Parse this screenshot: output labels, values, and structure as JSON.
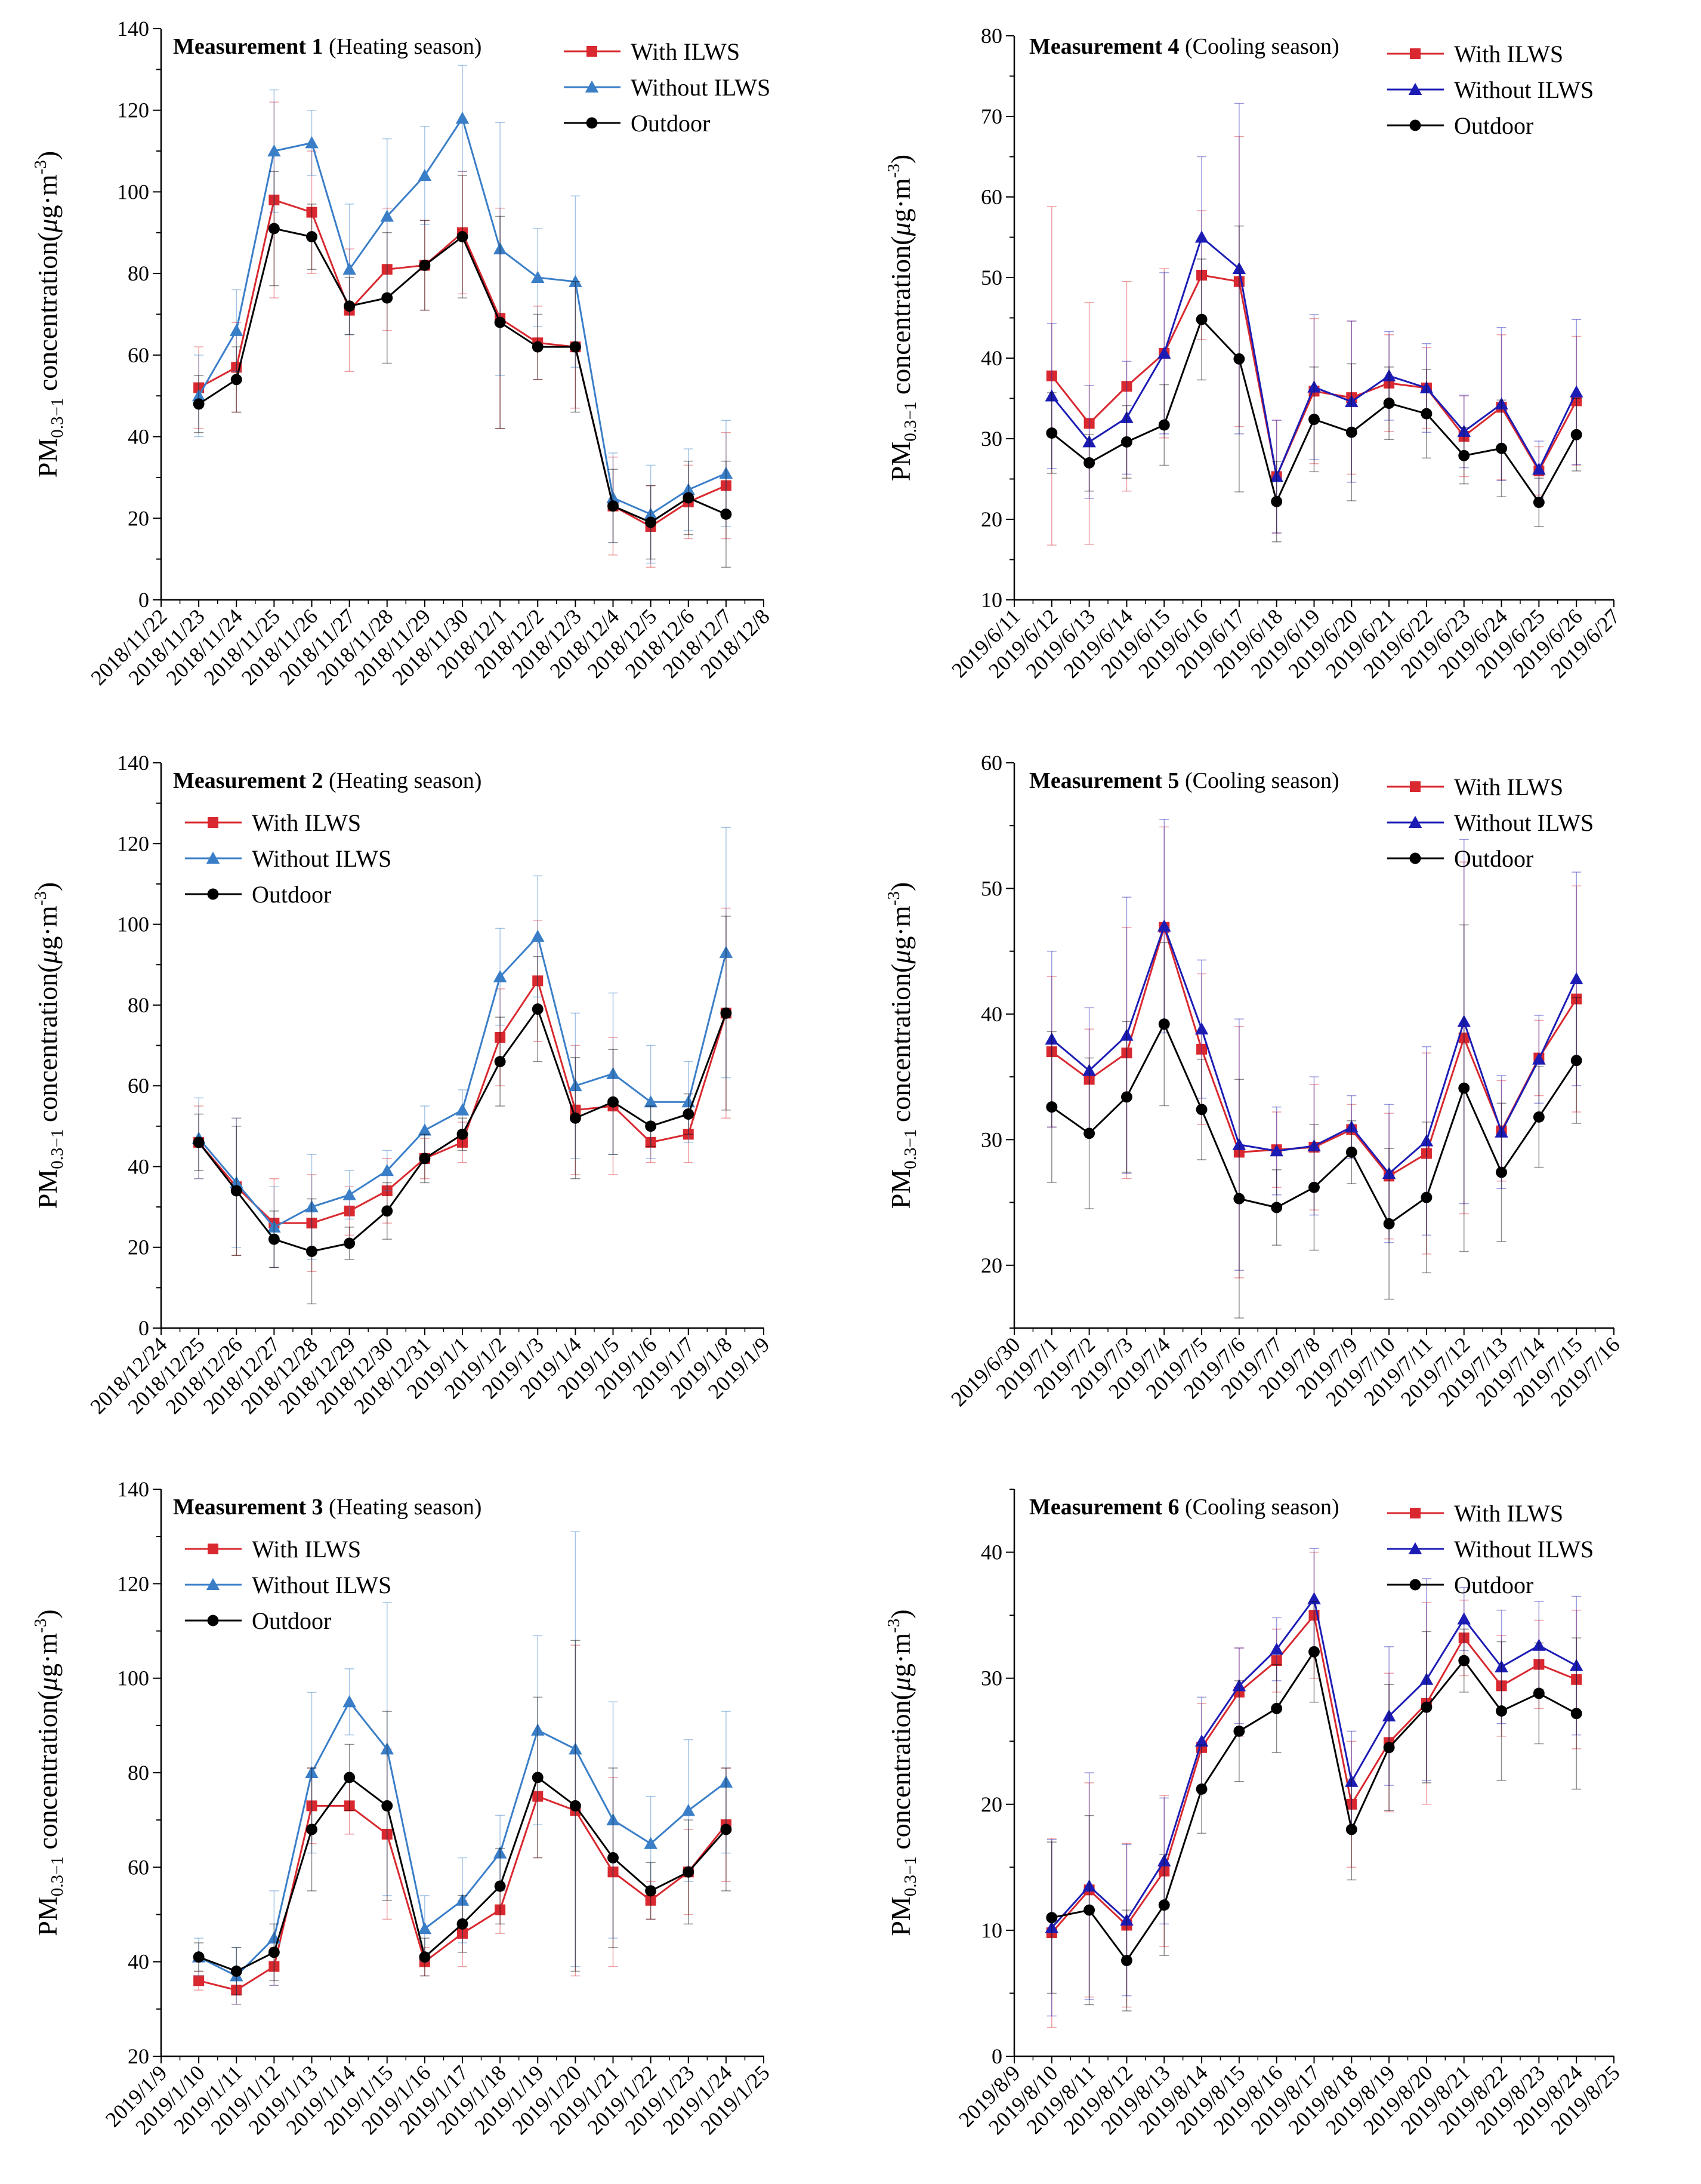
{
  "figure": {
    "ylabel": {
      "prefix": "PM",
      "subscript": "0.3−1",
      "middle": " concentration(",
      "mu": "μ",
      "unit_tail": "g·m",
      "exponent": "-3",
      "close": ")"
    },
    "colors": {
      "with": "#d9282f",
      "without_blue": "#3a7ec8",
      "without_navy": "#1c1cb5",
      "outdoor": "#000000"
    }
  },
  "chart_data": [
    {
      "type": "line",
      "title_bold": "Measurement 1",
      "title_rest": " (Heating season)",
      "ylim": [
        0,
        140
      ],
      "yticks": [
        0,
        20,
        40,
        60,
        80,
        100,
        120,
        140
      ],
      "x_tick_labels": [
        "2018/11/22",
        "2018/11/23",
        "2018/11/24",
        "2018/11/25",
        "2018/11/26",
        "2018/11/27",
        "2018/11/28",
        "2018/11/29",
        "2018/11/30",
        "2018/12/1",
        "2018/12/2",
        "2018/12/3",
        "2018/12/4",
        "2018/12/5",
        "2018/12/6",
        "2018/12/7",
        "2018/12/8"
      ],
      "x_start_index": 1,
      "legend_position": "top-right",
      "series": [
        {
          "name": "With ILWS",
          "marker": "square",
          "color_key": "with",
          "values": [
            52,
            57,
            98,
            95,
            71,
            81,
            82,
            90,
            69,
            63,
            62,
            23,
            18,
            24,
            28
          ],
          "errors": [
            10,
            11,
            24,
            15,
            15,
            15,
            11,
            15,
            27,
            9,
            15,
            12,
            10,
            9,
            13
          ]
        },
        {
          "name": "Without ILWS",
          "marker": "triangle",
          "color_key": "without_blue",
          "values": [
            50,
            66,
            110,
            112,
            81,
            94,
            104,
            118,
            86,
            79,
            78,
            25,
            21,
            27,
            31
          ],
          "errors": [
            10,
            10,
            15,
            8,
            16,
            19,
            12,
            13,
            31,
            12,
            21,
            11,
            12,
            10,
            13
          ]
        },
        {
          "name": "Outdoor",
          "marker": "circle",
          "color_key": "outdoor",
          "values": [
            48,
            54,
            91,
            89,
            72,
            74,
            82,
            89,
            68,
            62,
            62,
            23,
            19,
            25,
            21
          ],
          "errors": [
            7,
            8,
            14,
            8,
            7,
            16,
            11,
            15,
            26,
            8,
            16,
            9,
            9,
            9,
            13
          ]
        }
      ]
    },
    {
      "type": "line",
      "title_bold": "Measurement 2",
      "title_rest": " (Heating season)",
      "ylim": [
        0,
        140
      ],
      "yticks": [
        0,
        20,
        40,
        60,
        80,
        100,
        120,
        140
      ],
      "x_tick_labels": [
        "2018/12/24",
        "2018/12/25",
        "2018/12/26",
        "2018/12/27",
        "2018/12/28",
        "2018/12/29",
        "2018/12/30",
        "2018/12/31",
        "2019/1/1",
        "2019/1/2",
        "2019/1/3",
        "2019/1/4",
        "2019/1/5",
        "2019/1/6",
        "2019/1/7",
        "2019/1/8",
        "2019/1/9"
      ],
      "x_start_index": 1,
      "legend_position": "top-left",
      "series": [
        {
          "name": "With ILWS",
          "marker": "square",
          "color_key": "with",
          "values": [
            46,
            35,
            26,
            26,
            29,
            34,
            42,
            46,
            72,
            86,
            54,
            55,
            46,
            48,
            78
          ],
          "errors": [
            9,
            17,
            11,
            12,
            6,
            8,
            5,
            5,
            12,
            15,
            16,
            17,
            5,
            7,
            26
          ]
        },
        {
          "name": "Without ILWS",
          "marker": "triangle",
          "color_key": "without_blue",
          "values": [
            47,
            36,
            25,
            30,
            33,
            39,
            49,
            54,
            87,
            97,
            60,
            63,
            56,
            56,
            93
          ],
          "errors": [
            10,
            16,
            10,
            13,
            6,
            5,
            6,
            5,
            12,
            15,
            18,
            20,
            14,
            10,
            31
          ]
        },
        {
          "name": "Outdoor",
          "marker": "circle",
          "color_key": "outdoor",
          "values": [
            46,
            34,
            22,
            19,
            21,
            29,
            42,
            48,
            66,
            79,
            52,
            56,
            50,
            53,
            78
          ],
          "errors": [
            7,
            16,
            7,
            13,
            4,
            7,
            6,
            4,
            11,
            13,
            15,
            13,
            5,
            5,
            24
          ]
        }
      ]
    },
    {
      "type": "line",
      "title_bold": "Measurement 3",
      "title_rest": " (Heating season)",
      "ylim": [
        20,
        140
      ],
      "yticks": [
        20,
        40,
        60,
        80,
        100,
        120,
        140
      ],
      "x_tick_labels": [
        "2019/1/9",
        "2019/1/10",
        "2019/1/11",
        "2019/1/12",
        "2019/1/13",
        "2019/1/14",
        "2019/1/15",
        "2019/1/16",
        "2019/1/17",
        "2019/1/18",
        "2019/1/19",
        "2019/1/20",
        "2019/1/21",
        "2019/1/22",
        "2019/1/23",
        "2019/1/24",
        "2019/1/25"
      ],
      "x_start_index": 1,
      "legend_position": "top-left",
      "series": [
        {
          "name": "With ILWS",
          "marker": "square",
          "color_key": "with",
          "values": [
            36,
            34,
            39,
            73,
            73,
            67,
            40,
            46,
            51,
            75,
            72,
            59,
            53,
            59,
            69
          ],
          "errors": [
            2,
            3,
            4,
            8,
            6,
            18,
            3,
            7,
            5,
            13,
            35,
            20,
            4,
            9,
            12
          ]
        },
        {
          "name": "Without ILWS",
          "marker": "triangle",
          "color_key": "without_blue",
          "values": [
            41,
            37,
            45,
            80,
            95,
            85,
            47,
            53,
            63,
            89,
            85,
            70,
            65,
            72,
            78
          ],
          "errors": [
            4,
            6,
            10,
            17,
            7,
            31,
            7,
            9,
            8,
            20,
            46,
            25,
            10,
            15,
            15
          ]
        },
        {
          "name": "Outdoor",
          "marker": "circle",
          "color_key": "outdoor",
          "values": [
            41,
            38,
            42,
            68,
            79,
            73,
            41,
            48,
            56,
            79,
            73,
            62,
            55,
            59,
            68
          ],
          "errors": [
            3,
            5,
            6,
            13,
            7,
            20,
            4,
            6,
            8,
            17,
            35,
            19,
            6,
            11,
            13
          ]
        }
      ]
    },
    {
      "type": "line",
      "title_bold": "Measurement 4",
      "title_rest": " (Cooling season)",
      "ylim": [
        10,
        80
      ],
      "yticks": [
        10,
        20,
        30,
        40,
        50,
        60,
        70,
        80
      ],
      "x_tick_labels": [
        "2019/6/11",
        "2019/6/12",
        "2019/6/13",
        "2019/6/14",
        "2019/6/15",
        "2019/6/16",
        "2019/6/17",
        "2019/6/18",
        "2019/6/19",
        "2019/6/20",
        "2019/6/21",
        "2019/6/22",
        "2019/6/23",
        "2019/6/24",
        "2019/6/25",
        "2019/6/26",
        "2019/6/27"
      ],
      "x_start_index": 1,
      "legend_position": "top-right",
      "series": [
        {
          "name": "With ILWS",
          "marker": "square",
          "color_key": "with",
          "values": [
            37.8,
            31.9,
            36.5,
            40.6,
            50.3,
            49.5,
            25.3,
            35.9,
            35.1,
            36.9,
            36.3,
            30.3,
            33.9,
            26.0,
            34.7
          ],
          "errors": [
            21.0,
            15.0,
            13.0,
            10.5,
            8.0,
            18.0,
            7.0,
            9.0,
            9.5,
            6.0,
            5.0,
            5.0,
            9.0,
            3.0,
            8.0
          ]
        },
        {
          "name": "Without ILWS",
          "marker": "triangle",
          "color_key": "without_navy",
          "values": [
            35.3,
            29.6,
            32.6,
            40.6,
            55.0,
            51.1,
            25.3,
            36.4,
            34.6,
            37.8,
            36.3,
            30.9,
            34.3,
            26.2,
            35.8
          ],
          "errors": [
            9.0,
            7.0,
            7.0,
            10.0,
            10.0,
            20.5,
            7.0,
            9.0,
            10.0,
            5.5,
            5.5,
            4.5,
            9.5,
            3.5,
            9.0
          ]
        },
        {
          "name": "Outdoor",
          "marker": "circle",
          "color_key": "outdoor",
          "values": [
            30.7,
            27.0,
            29.6,
            31.7,
            44.8,
            39.9,
            22.2,
            32.4,
            30.8,
            34.4,
            33.1,
            27.9,
            28.8,
            22.1,
            30.5
          ],
          "errors": [
            5.0,
            3.5,
            4.5,
            5.0,
            7.5,
            16.5,
            5.0,
            6.5,
            8.5,
            4.5,
            5.5,
            3.5,
            6.0,
            3.0,
            4.5
          ]
        }
      ]
    },
    {
      "type": "line",
      "title_bold": "Measurement 5",
      "title_rest": " (Cooling season)",
      "ylim": [
        15,
        60
      ],
      "yticks": [
        20,
        30,
        40,
        50,
        60
      ],
      "x_tick_labels": [
        "2019/6/30",
        "2019/7/1",
        "2019/7/2",
        "2019/7/3",
        "2019/7/4",
        "2019/7/5",
        "2019/7/6",
        "2019/7/7",
        "2019/7/8",
        "2019/7/9",
        "2019/7/10",
        "2019/7/11",
        "2019/7/12",
        "2019/7/13",
        "2019/7/14",
        "2019/7/15",
        "2019/7/16"
      ],
      "x_start_index": 1,
      "legend_position": "top-right",
      "series": [
        {
          "name": "With ILWS",
          "marker": "square",
          "color_key": "with",
          "values": [
            37.0,
            34.8,
            36.9,
            46.9,
            37.2,
            29.0,
            29.2,
            29.4,
            30.8,
            27.1,
            28.9,
            38.1,
            30.7,
            36.5,
            41.2
          ],
          "errors": [
            6.0,
            4.0,
            10.0,
            8.0,
            6.0,
            10.0,
            3.0,
            5.0,
            2.0,
            5.0,
            8.0,
            14.0,
            4.0,
            3.0,
            9.0
          ]
        },
        {
          "name": "Without ILWS",
          "marker": "triangle",
          "color_key": "without_navy",
          "values": [
            38.0,
            35.5,
            38.3,
            47.0,
            38.8,
            29.6,
            29.1,
            29.5,
            31.0,
            27.3,
            29.9,
            39.4,
            30.6,
            36.4,
            42.8
          ],
          "errors": [
            7.0,
            5.0,
            11.0,
            8.5,
            5.5,
            10.0,
            3.5,
            5.5,
            2.5,
            5.5,
            7.5,
            14.5,
            4.5,
            3.5,
            8.5
          ]
        },
        {
          "name": "Outdoor",
          "marker": "circle",
          "color_key": "outdoor",
          "values": [
            32.6,
            30.5,
            33.4,
            39.2,
            32.4,
            25.3,
            24.6,
            26.2,
            29.0,
            23.3,
            25.4,
            34.1,
            27.4,
            31.8,
            36.3
          ],
          "errors": [
            6.0,
            6.0,
            6.0,
            6.5,
            4.0,
            9.5,
            3.0,
            5.0,
            2.5,
            6.0,
            6.0,
            13.0,
            5.5,
            4.0,
            5.0
          ]
        }
      ]
    },
    {
      "type": "line",
      "title_bold": "Measurement 6",
      "title_rest": " (Cooling season)",
      "ylim": [
        0,
        45
      ],
      "yticks": [
        0,
        10,
        20,
        30,
        40
      ],
      "x_tick_labels": [
        "2019/8/9",
        "2019/8/10",
        "2019/8/11",
        "2019/8/12",
        "2019/8/13",
        "2019/8/14",
        "2019/8/15",
        "2019/8/16",
        "2019/8/17",
        "2019/8/18",
        "2019/8/19",
        "2019/8/20",
        "2019/8/21",
        "2019/8/22",
        "2019/8/23",
        "2019/8/24",
        "2019/8/25"
      ],
      "x_start_index": 1,
      "legend_position": "top-right",
      "series": [
        {
          "name": "With ILWS",
          "marker": "square",
          "color_key": "with",
          "values": [
            9.8,
            13.2,
            10.4,
            14.7,
            24.5,
            28.9,
            31.4,
            35.0,
            20.0,
            24.9,
            28.0,
            33.2,
            29.4,
            31.1,
            29.9
          ],
          "errors": [
            7.5,
            8.5,
            6.5,
            6.0,
            3.5,
            3.5,
            2.5,
            5.0,
            5.0,
            5.5,
            8.0,
            3.0,
            4.0,
            3.5,
            5.5
          ]
        },
        {
          "name": "Without ILWS",
          "marker": "triangle",
          "color_key": "without_navy",
          "values": [
            10.2,
            13.5,
            10.8,
            15.5,
            25.0,
            29.4,
            32.3,
            36.3,
            21.8,
            27.0,
            29.9,
            34.7,
            30.9,
            32.6,
            31.0
          ],
          "errors": [
            7.0,
            9.0,
            6.0,
            5.0,
            3.5,
            3.0,
            2.5,
            4.0,
            4.0,
            5.5,
            8.0,
            2.5,
            4.5,
            3.5,
            5.5
          ]
        },
        {
          "name": "Outdoor",
          "marker": "circle",
          "color_key": "outdoor",
          "values": [
            11.0,
            11.6,
            7.6,
            12.0,
            21.2,
            25.8,
            27.6,
            32.1,
            18.0,
            24.5,
            27.7,
            31.4,
            27.4,
            28.8,
            27.2
          ],
          "errors": [
            6.0,
            7.5,
            4.0,
            4.0,
            3.5,
            4.0,
            3.5,
            4.0,
            4.0,
            5.0,
            6.0,
            2.5,
            5.5,
            4.0,
            6.0
          ]
        }
      ]
    }
  ]
}
